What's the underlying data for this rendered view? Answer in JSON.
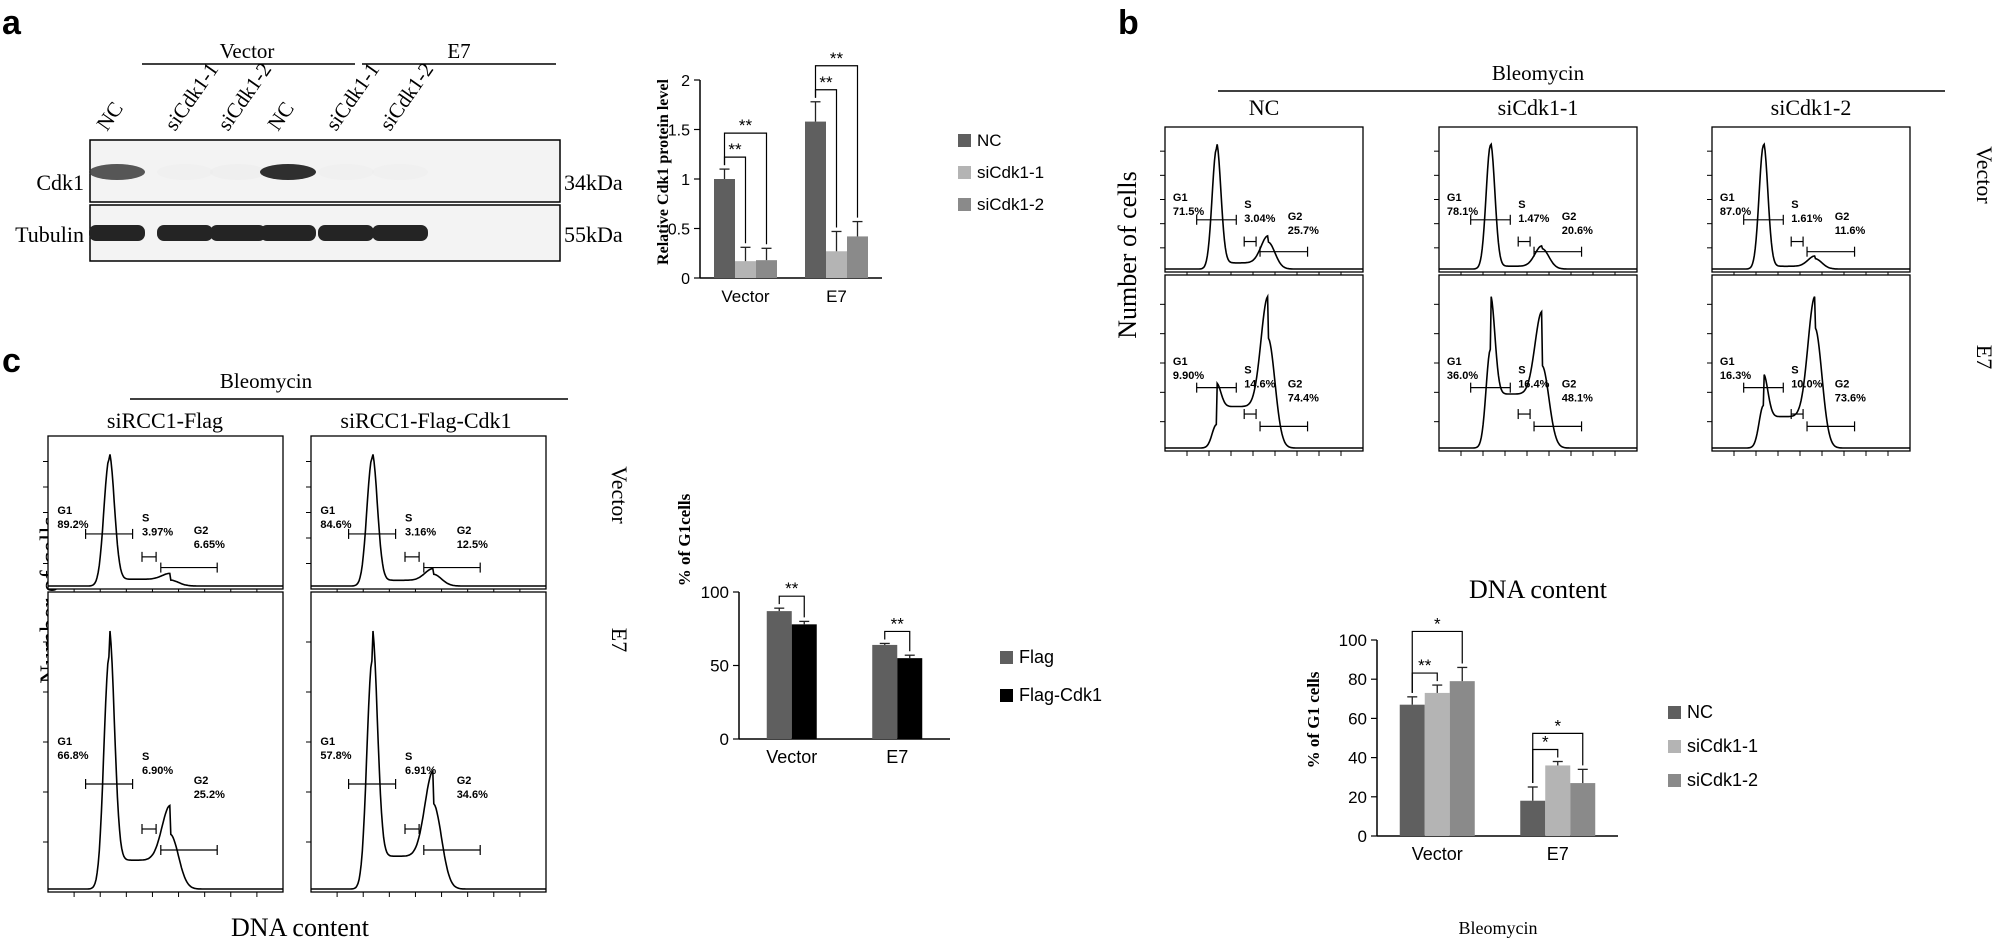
{
  "panel_labels": {
    "a": "a",
    "b": "b",
    "c": "c"
  },
  "colors": {
    "nc": "#5f5f5f",
    "si1": "#b4b4b4",
    "si2": "#8a8a8a",
    "flag": "#5f5f5f",
    "flagcdk1": "#000000"
  },
  "panel_a": {
    "blot": {
      "group_vector": "Vector",
      "group_e7": "E7",
      "lanes": [
        "NC",
        "siCdk1-1",
        "siCdk1-2",
        "NC",
        "siCdk1-1",
        "siCdk1-2"
      ],
      "row_cdk1": "Cdk1",
      "row_tubulin": "Tubulin",
      "mw_cdk1": "34kDa",
      "mw_tubulin": "55kDa",
      "cdk1_band_intensity": [
        0.85,
        0.05,
        0.08,
        0.95,
        0.04,
        0.05
      ],
      "tubulin_band_intensity": [
        0.95,
        0.95,
        0.95,
        0.95,
        0.95,
        0.95
      ]
    },
    "chart_data": {
      "type": "bar",
      "ylabel": "Relative Cdk1 protein level",
      "ylim": [
        0,
        2
      ],
      "yticks": [
        "0",
        "0.5",
        "1",
        "1.5",
        "2"
      ],
      "categories": [
        "Vector",
        "E7"
      ],
      "series": [
        {
          "name": "NC",
          "values": [
            1.0,
            1.58
          ],
          "errors": [
            0.1,
            0.2
          ],
          "color": "#5f5f5f"
        },
        {
          "name": "siCdk1-1",
          "values": [
            0.17,
            0.27
          ],
          "errors": [
            0.14,
            0.2
          ],
          "color": "#b4b4b4"
        },
        {
          "name": "siCdk1-2",
          "values": [
            0.18,
            0.42
          ],
          "errors": [
            0.12,
            0.15
          ],
          "color": "#8a8a8a"
        }
      ],
      "significance": [
        "**",
        "**",
        "**",
        "**"
      ],
      "legend_position": "right"
    }
  },
  "panel_b": {
    "treatment": "Bleomycin",
    "columns": [
      "NC",
      "siCdk1-1",
      "siCdk1-2"
    ],
    "rows": [
      "Vector",
      "E7"
    ],
    "ylabel": "Number of cells",
    "xlabel": "DNA content",
    "histograms": [
      {
        "g1": "71.5%",
        "s": "3.04%",
        "g2": "25.7%"
      },
      {
        "g1": "78.1%",
        "s": "1.47%",
        "g2": "20.6%"
      },
      {
        "g1": "87.0%",
        "s": "1.61%",
        "g2": "11.6%"
      },
      {
        "g1": "9.90%",
        "s": "14.6%",
        "g2": "74.4%"
      },
      {
        "g1": "36.0%",
        "s": "16.4%",
        "g2": "48.1%"
      },
      {
        "g1": "16.3%",
        "s": "10.0%",
        "g2": "73.6%"
      }
    ],
    "gate_labels": {
      "g1": "G1",
      "s": "S",
      "g2": "G2"
    },
    "chart_data": {
      "type": "bar",
      "ylabel": "% of G1 cells",
      "ylim": [
        0,
        100
      ],
      "yticks": [
        "0",
        "20",
        "40",
        "60",
        "80",
        "100"
      ],
      "categories": [
        "Vector",
        "E7"
      ],
      "xgroup_label": "Bleomycin",
      "series": [
        {
          "name": "NC",
          "values": [
            67,
            18
          ],
          "errors": [
            4,
            7
          ],
          "color": "#5f5f5f"
        },
        {
          "name": "siCdk1-1",
          "values": [
            73,
            36
          ],
          "errors": [
            4,
            2
          ],
          "color": "#b4b4b4"
        },
        {
          "name": "siCdk1-2",
          "values": [
            79,
            27
          ],
          "errors": [
            7,
            7
          ],
          "color": "#8a8a8a"
        }
      ],
      "significance": [
        "**",
        "*",
        "*",
        "*"
      ],
      "legend_position": "right"
    }
  },
  "panel_c": {
    "treatment": "Bleomycin",
    "columns": [
      "siRCC1-Flag",
      "siRCC1-Flag-Cdk1"
    ],
    "rows": [
      "Vector",
      "E7"
    ],
    "ylabel": "Number of cells",
    "xlabel": "DNA content",
    "histograms": [
      {
        "g1": "89.2%",
        "s": "3.97%",
        "g2": "6.65%"
      },
      {
        "g1": "84.6%",
        "s": "3.16%",
        "g2": "12.5%"
      },
      {
        "g1": "66.8%",
        "s": "6.90%",
        "g2": "25.2%"
      },
      {
        "g1": "57.8%",
        "s": "6.91%",
        "g2": "34.6%"
      }
    ],
    "gate_labels": {
      "g1": "G1",
      "s": "S",
      "g2": "G2"
    },
    "chart_data": {
      "type": "bar",
      "ylabel": "% of G1cells",
      "ylim": [
        0,
        100
      ],
      "yticks": [
        "0",
        "50",
        "100"
      ],
      "categories": [
        "Vector",
        "E7"
      ],
      "series": [
        {
          "name": "Flag",
          "values": [
            87,
            64
          ],
          "errors": [
            2,
            1
          ],
          "color": "#5f5f5f"
        },
        {
          "name": "Flag-Cdk1",
          "values": [
            78,
            55
          ],
          "errors": [
            2,
            2
          ],
          "color": "#000000"
        }
      ],
      "significance": [
        "**",
        "**"
      ],
      "legend_position": "right"
    }
  }
}
